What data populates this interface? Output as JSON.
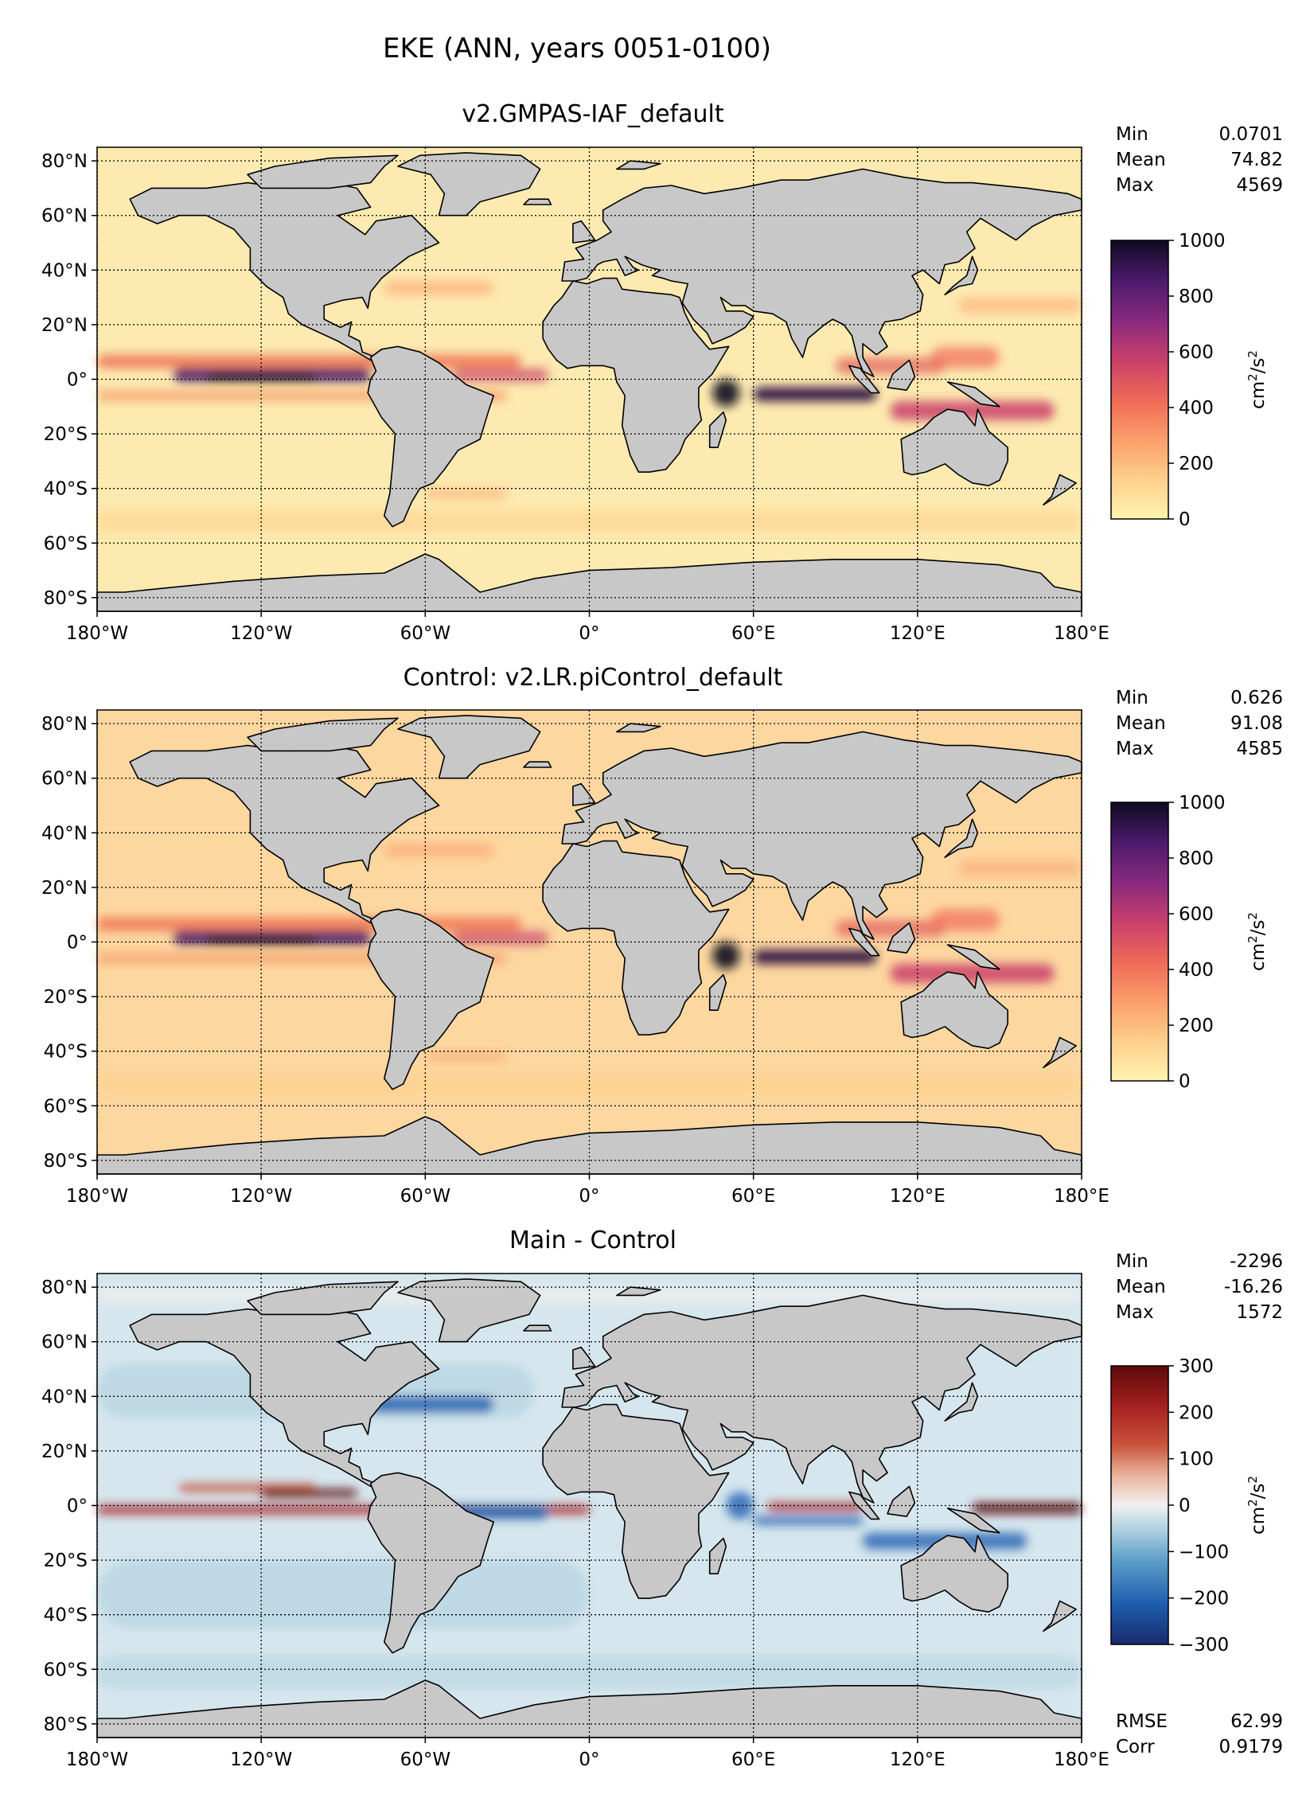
{
  "figure": {
    "title": "EKE (ANN, years 0051-0100)"
  },
  "axes": {
    "lat_ticks": [
      "80°N",
      "60°N",
      "40°N",
      "20°N",
      "0°",
      "20°S",
      "40°S",
      "60°S",
      "80°S"
    ],
    "lat_values": [
      80,
      60,
      40,
      20,
      0,
      -20,
      -40,
      -60,
      -80
    ],
    "lon_ticks": [
      "180°W",
      "120°W",
      "60°W",
      "0°",
      "60°E",
      "120°E",
      "180°E"
    ],
    "lon_values": [
      -180,
      -120,
      -60,
      0,
      60,
      120,
      180
    ],
    "lat_range": [
      -85,
      85
    ],
    "lon_range": [
      -180,
      180
    ],
    "grid": "dotted"
  },
  "colors": {
    "land": "#c8c8c8",
    "coast": "#000000",
    "eke_scale": [
      "#fff3b0",
      "#fdd08c",
      "#fba06c",
      "#f06c58",
      "#c9406a",
      "#8a2a7e",
      "#4a1a6b",
      "#0e0a20"
    ],
    "diff_scale": [
      "#1a2a6c",
      "#1f5fb0",
      "#5c9ec8",
      "#b4d3e1",
      "#f0f0f0",
      "#eab9a2",
      "#c8513b",
      "#a41f1f",
      "#5b0a0a"
    ]
  },
  "panels": [
    {
      "id": "main",
      "title": "v2.GMPAS-IAF_default",
      "stats": [
        {
          "label": "Min",
          "value": "0.0701"
        },
        {
          "label": "Mean",
          "value": "74.82"
        },
        {
          "label": "Max",
          "value": "4569"
        }
      ],
      "colorbar": {
        "ticks": [
          "1000",
          "800",
          "600",
          "400",
          "200",
          "0"
        ],
        "values": [
          1000,
          800,
          600,
          400,
          200,
          0
        ],
        "range": [
          0,
          1000
        ],
        "unit_base": "cm",
        "unit_sup1": "2",
        "unit_mid": "/s",
        "unit_sup2": "2",
        "scale": "eke"
      },
      "ocean": "#fdeab0",
      "footer": []
    },
    {
      "id": "control",
      "title": "Control: v2.LR.piControl_default",
      "stats": [
        {
          "label": "Min",
          "value": "0.626"
        },
        {
          "label": "Mean",
          "value": "91.08"
        },
        {
          "label": "Max",
          "value": "4585"
        }
      ],
      "colorbar": {
        "ticks": [
          "1000",
          "800",
          "600",
          "400",
          "200",
          "0"
        ],
        "values": [
          1000,
          800,
          600,
          400,
          200,
          0
        ],
        "range": [
          0,
          1000
        ],
        "unit_base": "cm",
        "unit_sup1": "2",
        "unit_mid": "/s",
        "unit_sup2": "2",
        "scale": "eke"
      },
      "ocean": "#fdd7a0",
      "footer": []
    },
    {
      "id": "diff",
      "title": "Main - Control",
      "stats": [
        {
          "label": "Min",
          "value": "-2296"
        },
        {
          "label": "Mean",
          "value": "-16.26"
        },
        {
          "label": "Max",
          "value": "1572"
        }
      ],
      "colorbar": {
        "ticks": [
          "300",
          "200",
          "100",
          "0",
          "−100",
          "−200",
          "−300"
        ],
        "values": [
          300,
          200,
          100,
          0,
          -100,
          -200,
          -300
        ],
        "range": [
          -300,
          300
        ],
        "unit_base": "cm",
        "unit_sup1": "2",
        "unit_mid": "/s",
        "unit_sup2": "2",
        "scale": "diff"
      },
      "ocean": "#d6e6ee",
      "footer": [
        {
          "label": "RMSE",
          "value": "62.99"
        },
        {
          "label": "Corr",
          "value": "0.9179"
        }
      ]
    }
  ]
}
